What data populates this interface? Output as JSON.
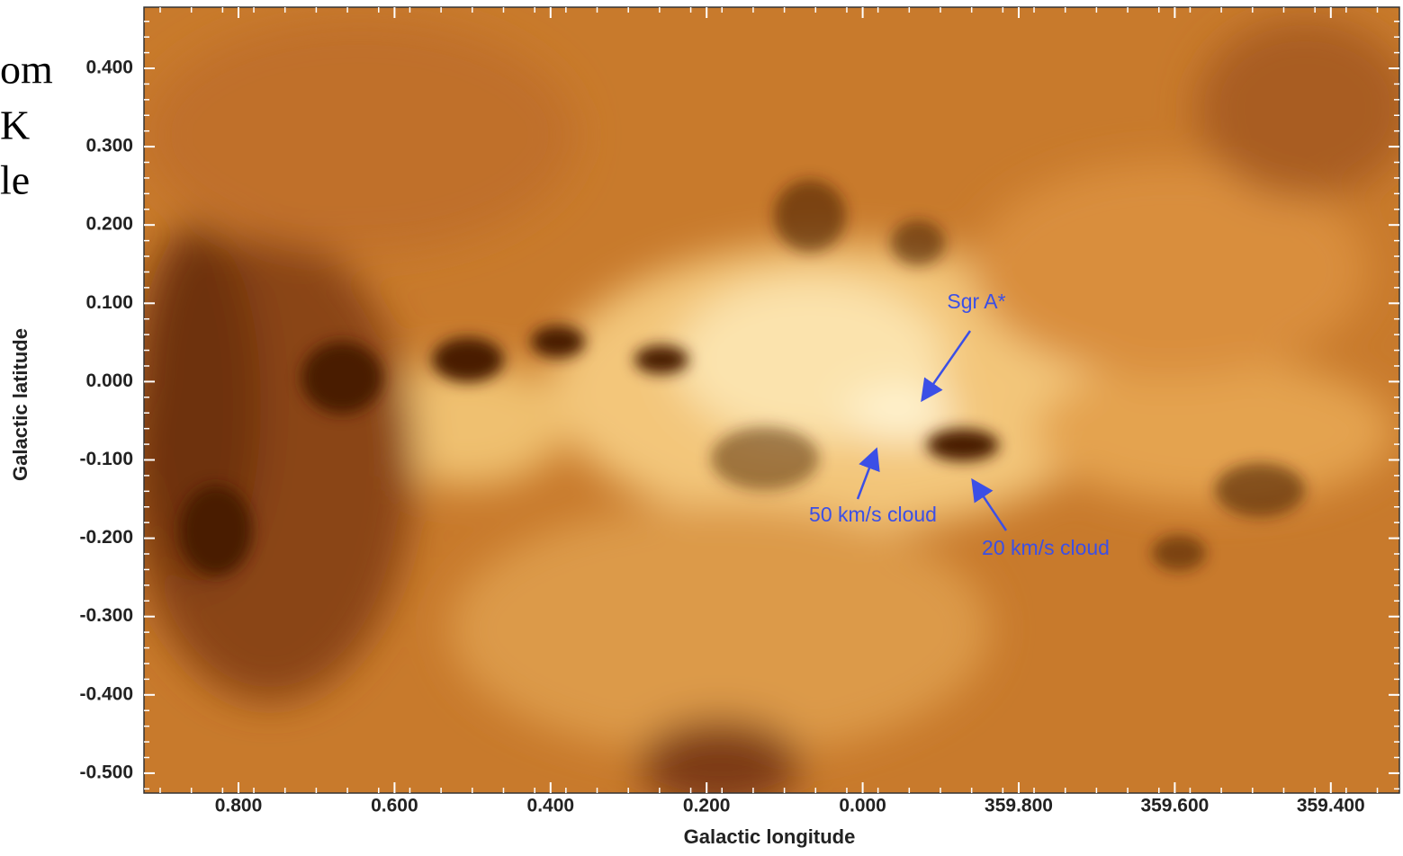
{
  "side_text": [
    "om",
    "K",
    "le"
  ],
  "figure": {
    "x_axis": {
      "label": "Galactic longitude",
      "ticks": [
        "0.800",
        "0.600",
        "0.400",
        "0.200",
        "0.000",
        "359.800",
        "359.600",
        "359.400"
      ]
    },
    "y_axis": {
      "label": "Galactic latitude",
      "ticks": [
        "0.400",
        "0.300",
        "0.200",
        "0.100",
        "0.000",
        "-0.100",
        "-0.200",
        "-0.300",
        "-0.400",
        "-0.500"
      ]
    },
    "annotations": [
      "Sgr A*",
      "50 km/s cloud",
      "20 km/s cloud"
    ]
  }
}
